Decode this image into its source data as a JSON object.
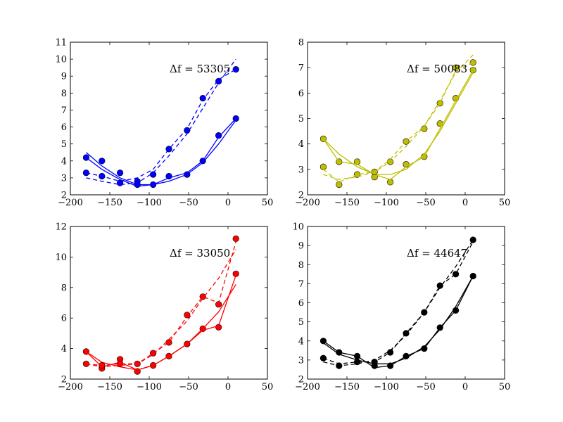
{
  "chart_data": [
    {
      "type": "line",
      "color": "#0000ff",
      "annotation": "Δf = 53305",
      "xlim": [
        -200,
        50
      ],
      "ylim": [
        2,
        11
      ],
      "xticks": [
        -200,
        -150,
        -100,
        -50,
        0,
        50
      ],
      "yticks": [
        2,
        3,
        4,
        5,
        6,
        7,
        8,
        9,
        10,
        11
      ],
      "x": [
        -180,
        -160,
        -137,
        -115,
        -95,
        -75,
        -52,
        -32,
        -12,
        10
      ],
      "series": [
        {
          "style": "markers",
          "values": [
            4.2,
            4.0,
            3.3,
            2.8,
            2.6,
            3.1,
            3.2,
            4.0,
            5.5,
            6.5
          ]
        },
        {
          "style": "solid",
          "values": [
            4.5,
            3.7,
            3.0,
            2.6,
            2.6,
            2.8,
            3.2,
            3.9,
            5.0,
            6.4
          ]
        },
        {
          "style": "solid",
          "values": [
            4.2,
            3.5,
            2.9,
            2.5,
            2.6,
            3.0,
            3.3,
            4.0,
            5.4,
            6.5
          ]
        },
        {
          "style": "markers",
          "values": [
            3.3,
            3.1,
            2.7,
            2.6,
            3.2,
            4.7,
            5.8,
            7.7,
            8.7,
            9.4
          ]
        },
        {
          "style": "dashed",
          "values": [
            3.0,
            2.8,
            2.6,
            2.7,
            3.3,
            4.3,
            5.6,
            7.1,
            8.6,
            10.0
          ]
        },
        {
          "style": "dashed",
          "values": [
            3.3,
            3.1,
            2.8,
            3.0,
            3.5,
            4.7,
            5.9,
            7.6,
            8.8,
            9.4
          ]
        }
      ]
    },
    {
      "type": "line",
      "color": "#bfbf00",
      "annotation": "Δf = 50083",
      "xlim": [
        -200,
        50
      ],
      "ylim": [
        2,
        8
      ],
      "xticks": [
        -200,
        -150,
        -100,
        -50,
        0,
        50
      ],
      "yticks": [
        2,
        3,
        4,
        5,
        6,
        7,
        8
      ],
      "x": [
        -180,
        -160,
        -137,
        -115,
        -95,
        -75,
        -52,
        -32,
        -12,
        10
      ],
      "series": [
        {
          "style": "markers",
          "values": [
            4.2,
            3.3,
            3.3,
            2.7,
            2.5,
            3.2,
            3.5,
            4.8,
            5.8,
            6.9
          ]
        },
        {
          "style": "solid",
          "values": [
            4.2,
            3.6,
            3.1,
            2.8,
            2.8,
            3.0,
            3.6,
            4.5,
            5.6,
            6.8
          ]
        },
        {
          "style": "solid",
          "values": [
            4.2,
            3.3,
            3.2,
            2.8,
            2.6,
            3.1,
            3.5,
            4.6,
            5.7,
            6.9
          ]
        },
        {
          "style": "markers",
          "values": [
            3.1,
            2.4,
            2.8,
            2.9,
            3.3,
            4.1,
            4.6,
            5.6,
            7.0,
            7.2
          ]
        },
        {
          "style": "dashed",
          "values": [
            2.8,
            2.6,
            2.7,
            2.9,
            3.3,
            3.9,
            4.7,
            5.7,
            6.8,
            7.5
          ]
        },
        {
          "style": "dashed",
          "values": [
            3.0,
            2.5,
            2.8,
            2.9,
            3.4,
            4.1,
            4.7,
            5.6,
            6.9,
            7.2
          ]
        }
      ]
    },
    {
      "type": "line",
      "color": "#ff0000",
      "annotation": "Δf = 33050",
      "xlim": [
        -200,
        50
      ],
      "ylim": [
        2,
        12
      ],
      "xticks": [
        -200,
        -150,
        -100,
        -50,
        0,
        50
      ],
      "yticks": [
        2,
        4,
        6,
        8,
        10,
        12
      ],
      "x": [
        -180,
        -160,
        -137,
        -115,
        -95,
        -75,
        -52,
        -32,
        -12,
        10
      ],
      "series": [
        {
          "style": "markers",
          "values": [
            3.8,
            2.7,
            3.3,
            2.5,
            2.9,
            3.5,
            4.3,
            5.3,
            5.4,
            8.9
          ]
        },
        {
          "style": "solid",
          "values": [
            3.8,
            3.1,
            2.8,
            2.6,
            2.9,
            3.5,
            4.3,
            5.3,
            6.4,
            8.2
          ]
        },
        {
          "style": "solid",
          "values": [
            3.8,
            2.8,
            3.1,
            2.6,
            2.9,
            3.5,
            4.3,
            5.2,
            5.5,
            8.8
          ]
        },
        {
          "style": "markers",
          "values": [
            3.0,
            2.9,
            3.0,
            3.0,
            3.7,
            4.4,
            6.2,
            7.4,
            6.9,
            11.2
          ]
        },
        {
          "style": "dashed",
          "values": [
            3.0,
            2.8,
            2.9,
            3.0,
            3.6,
            4.6,
            5.8,
            7.3,
            8.6,
            10.5
          ]
        },
        {
          "style": "dashed",
          "values": [
            3.0,
            2.9,
            3.0,
            3.0,
            3.7,
            4.4,
            6.1,
            7.4,
            7.0,
            11.0
          ]
        }
      ]
    },
    {
      "type": "line",
      "color": "#000000",
      "annotation": "Δf = 44647",
      "xlim": [
        -200,
        50
      ],
      "ylim": [
        2,
        10
      ],
      "xticks": [
        -200,
        -150,
        -100,
        -50,
        0,
        50
      ],
      "yticks": [
        2,
        3,
        4,
        5,
        6,
        7,
        8,
        9,
        10
      ],
      "x": [
        -180,
        -160,
        -137,
        -115,
        -95,
        -75,
        -52,
        -32,
        -12,
        10
      ],
      "series": [
        {
          "style": "markers",
          "values": [
            4.0,
            3.4,
            2.9,
            2.7,
            2.7,
            3.2,
            3.6,
            4.7,
            5.6,
            7.4
          ]
        },
        {
          "style": "solid",
          "values": [
            3.9,
            3.3,
            3.0,
            2.8,
            2.8,
            3.1,
            3.7,
            4.6,
            5.8,
            7.4
          ]
        },
        {
          "style": "solid",
          "values": [
            4.0,
            3.4,
            3.2,
            2.6,
            2.7,
            3.2,
            3.6,
            4.7,
            5.6,
            7.4
          ]
        },
        {
          "style": "markers",
          "values": [
            3.1,
            2.7,
            3.2,
            2.9,
            3.4,
            4.4,
            5.5,
            6.9,
            7.5,
            9.3
          ]
        },
        {
          "style": "dashed",
          "values": [
            2.9,
            2.7,
            2.8,
            3.0,
            3.5,
            4.3,
            5.5,
            6.8,
            7.9,
            9.3
          ]
        },
        {
          "style": "dashed",
          "values": [
            3.1,
            2.8,
            2.9,
            2.9,
            3.4,
            4.4,
            5.5,
            6.9,
            7.5,
            9.2
          ]
        }
      ]
    }
  ]
}
